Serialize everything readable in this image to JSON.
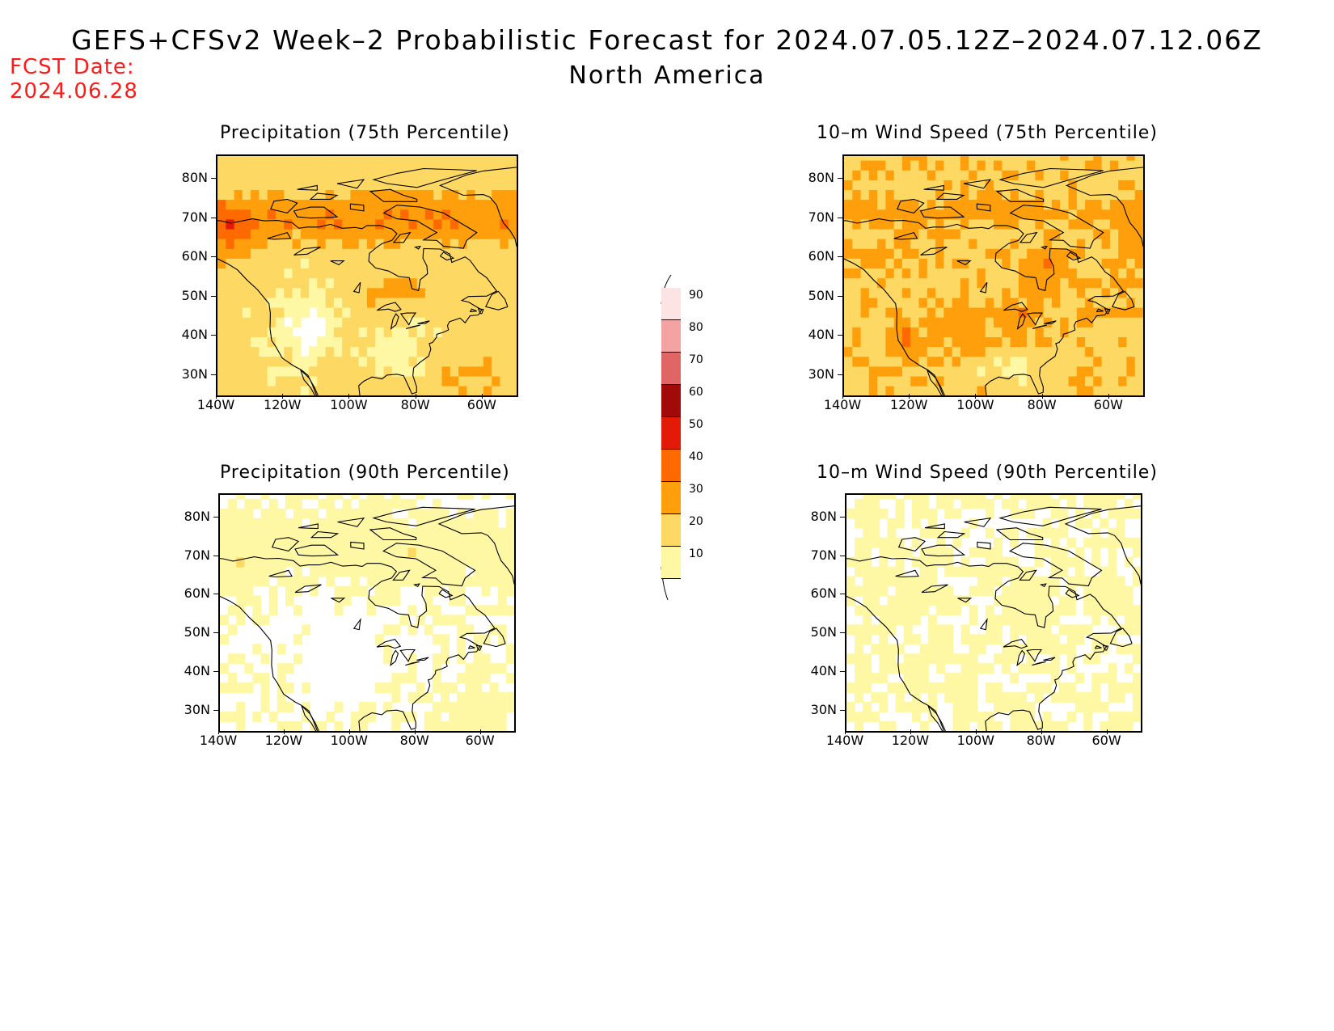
{
  "header": {
    "title": "GEFS+CFSv2 Week–2 Probabilistic Forecast for 2024.07.05.12Z–2024.07.12.06Z",
    "subtitle": "North America",
    "fcst_label": "FCST Date:",
    "fcst_date": "2024.06.28"
  },
  "axes": {
    "lat_labels": [
      "80N",
      "70N",
      "60N",
      "50N",
      "40N",
      "30N"
    ],
    "lon_labels": [
      "140W",
      "120W",
      "100W",
      "80W",
      "60W"
    ]
  },
  "panels": [
    {
      "id": "precip75",
      "title": "Precipitation (75th Percentile)",
      "intensity": 0.9
    },
    {
      "id": "wind75",
      "title": "10–m Wind Speed (75th Percentile)",
      "intensity": 1.0
    },
    {
      "id": "precip90",
      "title": "Precipitation (90th Percentile)",
      "intensity": 0.25
    },
    {
      "id": "wind90",
      "title": "10–m Wind Speed (90th Percentile)",
      "intensity": 0.3
    }
  ],
  "colorbar": {
    "labels": [
      "90",
      "80",
      "70",
      "60",
      "50",
      "40",
      "30",
      "20",
      "10"
    ],
    "colors": [
      "#fde4e4",
      "#f4a3a3",
      "#e06666",
      "#a20a0a",
      "#e31a08",
      "#fe6a00",
      "#fe9f0b",
      "#fdd862",
      "#fef7a4"
    ]
  }
}
